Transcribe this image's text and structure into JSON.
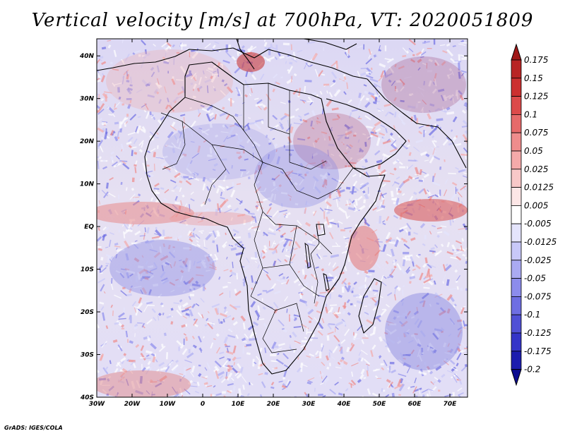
{
  "title": "Vertical velocity [m/s] at 700hPa, VT: 2020051809",
  "credit": "GrADS: IGES/COLA",
  "map": {
    "lon_ticks": [
      "30W",
      "20W",
      "10W",
      "0",
      "10E",
      "20E",
      "30E",
      "40E",
      "50E",
      "60E",
      "70E"
    ],
    "lat_ticks": [
      "40N",
      "30N",
      "20N",
      "10N",
      "EQ",
      "10S",
      "20S",
      "30S",
      "40S"
    ],
    "lon_range": [
      -30,
      75
    ],
    "lat_range": [
      -40,
      44
    ]
  },
  "colorbar": {
    "labels": [
      "0.175",
      "0.15",
      "0.125",
      "0.1",
      "0.075",
      "0.05",
      "0.025",
      "0.0125",
      "0.005",
      "-0.005",
      "-0.0125",
      "-0.025",
      "-0.05",
      "-0.075",
      "-0.1",
      "-0.125",
      "-0.175",
      "-0.2"
    ],
    "colors": [
      "#a01818",
      "#b82424",
      "#cc3030",
      "#dc4a4a",
      "#e66a6a",
      "#ee8c8c",
      "#f4aaaa",
      "#f8c8c8",
      "#fce6e6",
      "#ffffff",
      "#e4e4fc",
      "#c8c8f8",
      "#aaaaf2",
      "#8c8cec",
      "#6e6ee2",
      "#5050d6",
      "#3434c8",
      "#1c1cae",
      "#0c0c90"
    ]
  }
}
